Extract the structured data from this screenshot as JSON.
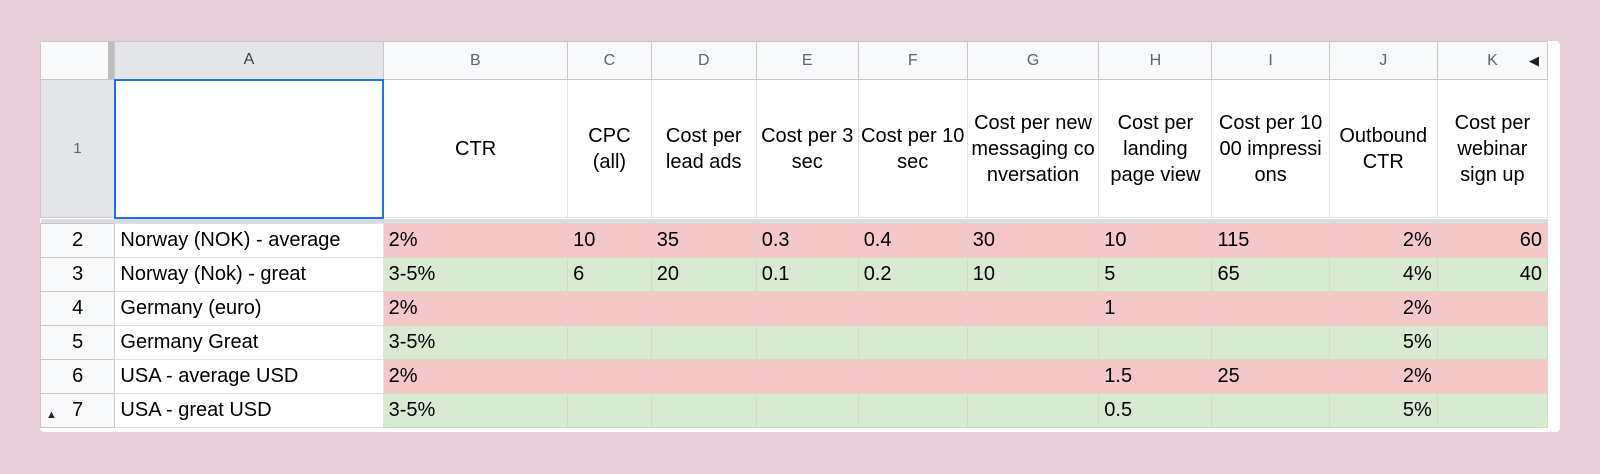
{
  "column_headers": [
    "A",
    "B",
    "C",
    "D",
    "E",
    "F",
    "G",
    "H",
    "I",
    "J",
    "K"
  ],
  "row_numbers": [
    "1",
    "2",
    "3",
    "4",
    "5",
    "6",
    "7"
  ],
  "header_row": {
    "a": "",
    "b": "CTR",
    "c": "CPC (all)",
    "d": "Cost per lead ads",
    "e": "Cost per 3 sec",
    "f": "Cost per 10 sec",
    "g": "Cost per new messaging conversation",
    "h": "Cost per landing page view",
    "i": "Cost per 1000 impressions",
    "j": "Outbound CTR",
    "k": "Cost per webinar sign up"
  },
  "rows": [
    {
      "label": "Norway (NOK) - average",
      "b": "2%",
      "c": "10",
      "d": "35",
      "e": "0.3",
      "f": "0.4",
      "g": "30",
      "h": "10",
      "i": "115",
      "j": "2%",
      "k": "60"
    },
    {
      "label": "Norway (Nok) - great",
      "b": "3-5%",
      "c": "6",
      "d": "20",
      "e": "0.1",
      "f": "0.2",
      "g": "10",
      "h": "5",
      "i": "65",
      "j": "4%",
      "k": "40"
    },
    {
      "label": "Germany (euro)",
      "b": "2%",
      "c": "",
      "d": "",
      "e": "",
      "f": "",
      "g": "",
      "h": "1",
      "i": "",
      "j": "2%",
      "k": ""
    },
    {
      "label": "Germany Great",
      "b": "3-5%",
      "c": "",
      "d": "",
      "e": "",
      "f": "",
      "g": "",
      "h": "",
      "i": "",
      "j": "5%",
      "k": ""
    },
    {
      "label": "USA - average USD",
      "b": "2%",
      "c": "",
      "d": "",
      "e": "",
      "f": "",
      "g": "",
      "h": "1.5",
      "i": "25",
      "j": "2%",
      "k": ""
    },
    {
      "label": "USA - great USD",
      "b": "3-5%",
      "c": "",
      "d": "",
      "e": "",
      "f": "",
      "g": "",
      "h": "0.5",
      "i": "",
      "j": "5%",
      "k": ""
    }
  ],
  "colors": {
    "average_fill": "#f4c7c9",
    "great_fill": "#d9ead3",
    "selection": "#1a73e8",
    "background": "#e7d0d9"
  },
  "icons": {
    "column_scroll": "triangle-left-icon",
    "row_scroll": "triangle-up-icon"
  }
}
